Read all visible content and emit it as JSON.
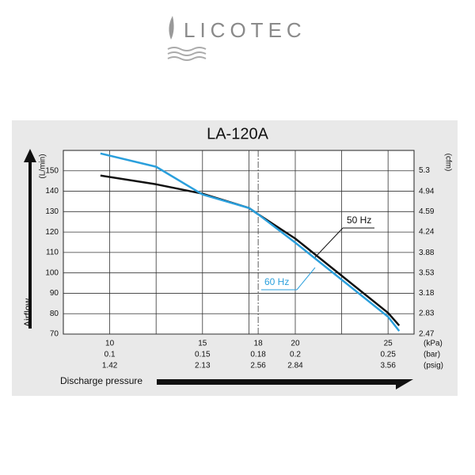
{
  "brand": "LICOTEC",
  "chart_data": {
    "type": "line",
    "title": "LA-120A",
    "x_label": "Discharge pressure",
    "y_label": "Airflow",
    "y_unit": "(L/min)",
    "y2_unit": "(cfm)",
    "x_units": [
      "(kPa)",
      "(bar)",
      "(psig)"
    ],
    "xlim": [
      7.5,
      26.4
    ],
    "ylim": [
      70,
      160
    ],
    "y2lim": [
      2.47,
      5.65
    ],
    "xticks": [
      10,
      15,
      18,
      20,
      25
    ],
    "xticks_bar": [
      0.1,
      0.15,
      0.18,
      0.2,
      0.25
    ],
    "xticks_psig": [
      1.42,
      2.13,
      2.56,
      2.84,
      3.56
    ],
    "x_grid_lines": [
      10,
      12.5,
      15,
      17.5,
      20,
      22.5,
      25
    ],
    "reference_line_x": 18,
    "yticks": [
      70,
      80,
      90,
      100,
      110,
      120,
      130,
      140,
      150
    ],
    "y2ticks": [
      2.47,
      2.83,
      3.18,
      3.53,
      3.88,
      4.24,
      4.59,
      4.94,
      5.3
    ],
    "grid": true,
    "series": [
      {
        "name": "50 Hz",
        "color": "#111111",
        "x": [
          9.5,
          12.5,
          15,
          17.5,
          18,
          20,
          25,
          25.6
        ],
        "values": [
          147.7,
          143.4,
          138.8,
          131.8,
          128.7,
          116.8,
          80.4,
          74.2
        ]
      },
      {
        "name": "60 Hz",
        "color": "#2a9fdc",
        "x": [
          9.5,
          12.5,
          15,
          17.5,
          18,
          20,
          25,
          25.6
        ],
        "values": [
          158.5,
          152,
          138.4,
          131.8,
          128.7,
          114.8,
          78.5,
          71.5
        ]
      }
    ]
  }
}
